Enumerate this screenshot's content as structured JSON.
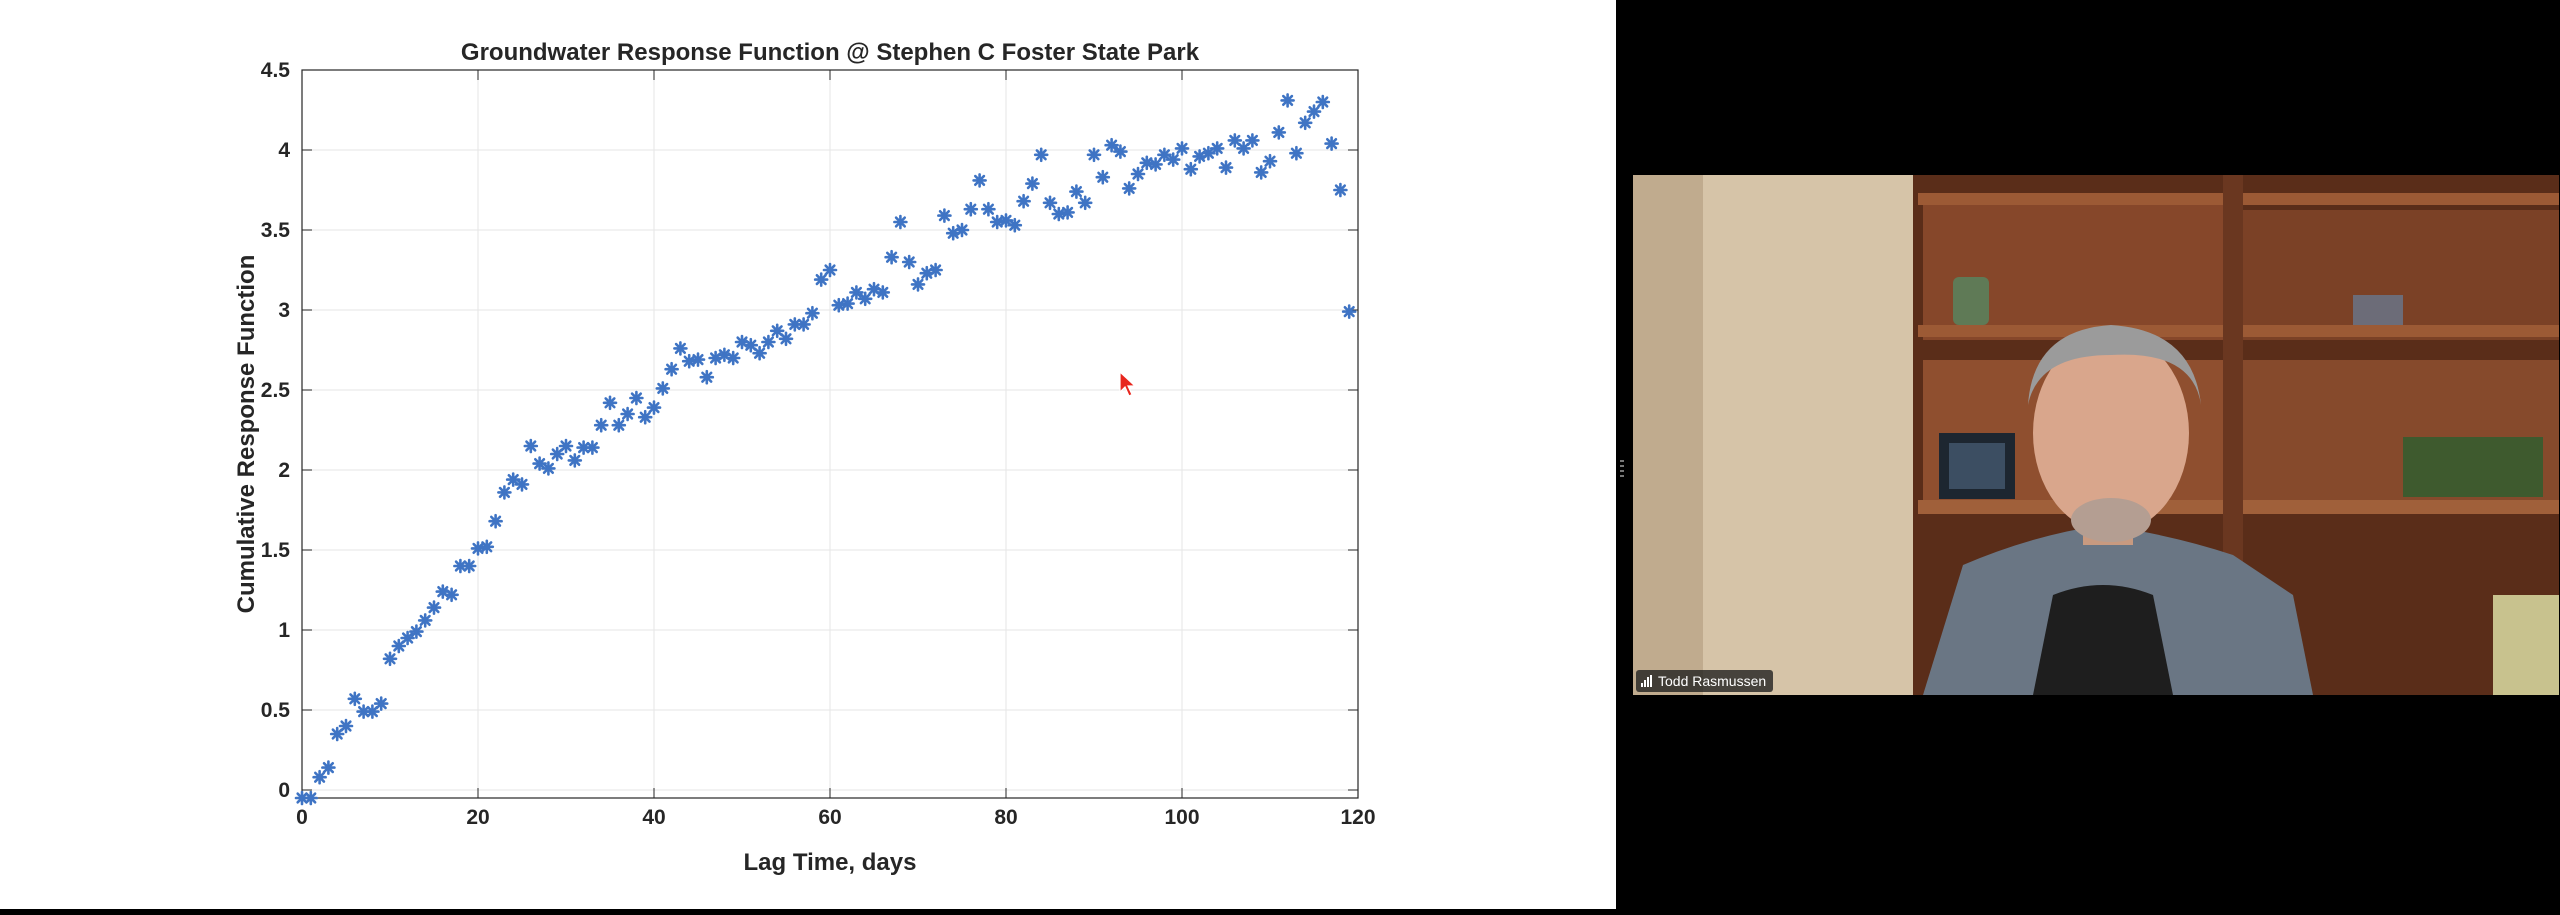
{
  "shared_screen": {
    "chart_data": {
      "type": "scatter",
      "title": "Groundwater Response Function @ Stephen C Foster State Park",
      "xlabel": "Lag Time, days",
      "ylabel": "Cumulative Response Function",
      "xlim": [
        0,
        120
      ],
      "ylim": [
        -0.05,
        4.5
      ],
      "xticks": [
        0,
        20,
        40,
        60,
        80,
        100,
        120
      ],
      "yticks": [
        0,
        0.5,
        1,
        1.5,
        2,
        2.5,
        3,
        3.5,
        4,
        4.5
      ],
      "grid": true,
      "marker": "asterisk",
      "marker_color": "#3f74c4",
      "x": [
        0,
        1,
        2,
        3,
        4,
        5,
        6,
        7,
        8,
        9,
        10,
        11,
        12,
        13,
        14,
        15,
        16,
        17,
        18,
        19,
        20,
        21,
        22,
        23,
        24,
        25,
        26,
        27,
        28,
        29,
        30,
        31,
        32,
        33,
        34,
        35,
        36,
        37,
        38,
        39,
        40,
        41,
        42,
        43,
        44,
        45,
        46,
        47,
        48,
        49,
        50,
        51,
        52,
        53,
        54,
        55,
        56,
        57,
        58,
        59,
        60,
        61,
        62,
        63,
        64,
        65,
        66,
        67,
        68,
        69,
        70,
        71,
        72,
        73,
        74,
        75,
        76,
        77,
        78,
        79,
        80,
        81,
        82,
        83,
        84,
        85,
        86,
        87,
        88,
        89,
        90,
        91,
        92,
        93,
        94,
        95,
        96,
        97,
        98,
        99,
        100,
        101,
        102,
        103,
        104,
        105,
        106,
        107,
        108,
        109,
        110,
        111,
        112,
        113,
        114,
        115,
        116,
        117,
        118,
        119
      ],
      "y": [
        -0.05,
        -0.05,
        0.08,
        0.14,
        0.35,
        0.4,
        0.57,
        0.49,
        0.49,
        0.54,
        0.82,
        0.9,
        0.95,
        0.99,
        1.06,
        1.14,
        1.24,
        1.22,
        1.4,
        1.4,
        1.51,
        1.52,
        1.68,
        1.86,
        1.94,
        1.91,
        2.15,
        2.04,
        2.01,
        2.1,
        2.15,
        2.06,
        2.14,
        2.14,
        2.28,
        2.42,
        2.28,
        2.35,
        2.45,
        2.33,
        2.39,
        2.51,
        2.63,
        2.76,
        2.68,
        2.69,
        2.58,
        2.7,
        2.72,
        2.7,
        2.8,
        2.78,
        2.73,
        2.8,
        2.87,
        2.82,
        2.91,
        2.91,
        2.98,
        3.19,
        3.25,
        3.03,
        3.04,
        3.11,
        3.07,
        3.13,
        3.11,
        3.33,
        3.55,
        3.3,
        3.16,
        3.23,
        3.25,
        3.59,
        3.48,
        3.5,
        3.63,
        3.81,
        3.63,
        3.55,
        3.56,
        3.53,
        3.68,
        3.79,
        3.97,
        3.67,
        3.6,
        3.61,
        3.74,
        3.67,
        3.97,
        3.83,
        4.03,
        3.99,
        3.76,
        3.85,
        3.92,
        3.91,
        3.97,
        3.94,
        4.01,
        3.88,
        3.96,
        3.98,
        4.01,
        3.89,
        4.06,
        4.01,
        4.06,
        3.86,
        3.93,
        4.11,
        4.31,
        3.98,
        4.17,
        4.24,
        4.3,
        4.04,
        3.75,
        2.99
      ]
    }
  },
  "participant_video": {
    "name": "Todd Rasmussen",
    "signal_icon": "signal-bars-icon"
  }
}
